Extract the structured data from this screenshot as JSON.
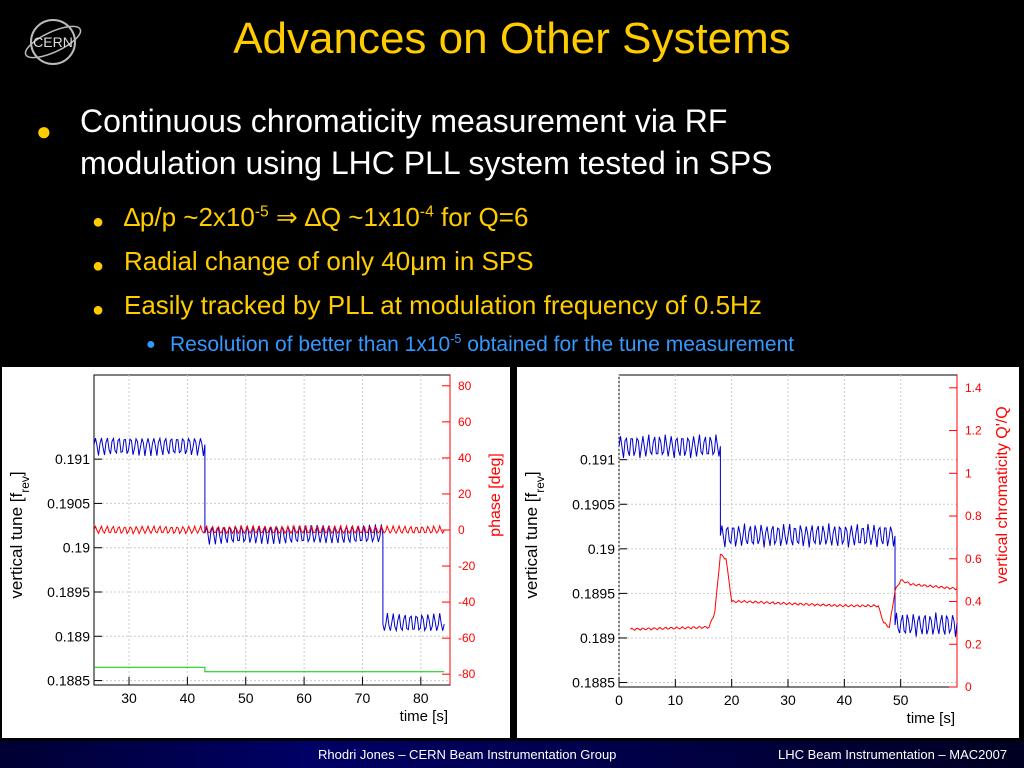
{
  "slide": {
    "title": "Advances on Other Systems",
    "logo_text": "CERN",
    "bullet1_line1": "Continuous chromaticity measurement via RF",
    "bullet1_line2": "modulation using LHC PLL system tested in SPS",
    "sub1_a": "∆p/p ~2x10",
    "sub1_sup1": "-5",
    "sub1_b": " ⇒ ∆Q ~1x10",
    "sub1_sup2": "-4",
    "sub1_c": " for Q=6",
    "sub2": "Radial change of only 40μm in SPS",
    "sub3": "Easily tracked by PLL at modulation frequency of 0.5Hz",
    "subsub_a": "Resolution of better than 1x10",
    "subsub_sup": "-5",
    "subsub_b": " obtained for the tune measurement",
    "footer_left": "Rhodri Jones – CERN Beam Instrumentation Group",
    "footer_right": "LHC Beam Instrumentation – MAC2007",
    "colors": {
      "title": "#ffcc00",
      "text": "#ffffff",
      "sub": "#ffcc00",
      "subsub": "#3399ff",
      "tune": "#0000cc",
      "phase": "#ff0000",
      "green": "#00cc00"
    }
  },
  "chart_data": [
    {
      "type": "line",
      "xlabel": "time [s]",
      "ylabel": "vertical tune [f_rev]",
      "ylabel_main": "vertical tune [f",
      "ylabel_sub": "rev",
      "ylabel_end": "]",
      "y2label": "phase [deg]",
      "xlim": [
        24,
        85
      ],
      "ylim": [
        0.18845,
        0.19195
      ],
      "y2lim": [
        -86,
        86
      ],
      "xticks": [
        30,
        40,
        50,
        60,
        70,
        80
      ],
      "yticks": [
        0.1885,
        0.189,
        0.1895,
        0.19,
        0.1905,
        0.191
      ],
      "ytick_labels": [
        "0.1885",
        "0.189",
        "0.1895",
        "0.19",
        "0.1905",
        "0.191"
      ],
      "y2ticks": [
        -80,
        -60,
        -40,
        -20,
        0,
        20,
        40,
        60,
        80
      ],
      "grid": true,
      "series": [
        {
          "axis": "y",
          "color": "#0000cc",
          "amplitude": 0.0001,
          "segments": [
            {
              "x": [
                24,
                43
              ],
              "y": [
                0.19115,
                0.19115
              ]
            },
            {
              "x": [
                43,
                73.5
              ],
              "y": [
                0.19015,
                0.19015
              ]
            },
            {
              "x": [
                73.5,
                84
              ],
              "y": [
                0.18915,
                0.18915
              ]
            }
          ]
        },
        {
          "axis": "y2",
          "color": "#ff0000",
          "amplitude": 2,
          "segments": [
            {
              "x": [
                24,
                84
              ],
              "y": [
                0,
                0
              ]
            }
          ]
        },
        {
          "axis": "y",
          "color": "#00cc00",
          "amplitude": 0,
          "segments": [
            {
              "x": [
                24,
                43
              ],
              "y": [
                0.18865,
                0.18865
              ]
            },
            {
              "x": [
                43,
                84
              ],
              "y": [
                0.1886,
                0.1886
              ]
            }
          ]
        }
      ]
    },
    {
      "type": "line",
      "xlabel": "time [s]",
      "ylabel": "vertical tune [f_rev]",
      "ylabel_main": "vertical tune [f",
      "ylabel_sub": "rev",
      "ylabel_end": "]",
      "y2label": "vertical chromaticity Q'/Q",
      "xlim": [
        0,
        60
      ],
      "ylim": [
        0.18845,
        0.19195
      ],
      "y2lim": [
        0,
        1.46
      ],
      "xticks": [
        0,
        10,
        20,
        30,
        40,
        50
      ],
      "yticks": [
        0.1885,
        0.189,
        0.1895,
        0.19,
        0.1905,
        0.191
      ],
      "ytick_labels": [
        "0.1885",
        "0.189",
        "0.1895",
        "0.19",
        "0.1905",
        "0.191"
      ],
      "y2ticks": [
        0,
        0.2,
        0.4,
        0.6,
        0.8,
        1,
        1.2,
        1.4
      ],
      "grid": true,
      "series": [
        {
          "axis": "y",
          "color": "#0000cc",
          "amplitude": 0.00012,
          "segments": [
            {
              "x": [
                0,
                18
              ],
              "y": [
                0.19115,
                0.19115
              ]
            },
            {
              "x": [
                18,
                49
              ],
              "y": [
                0.19015,
                0.19015
              ]
            },
            {
              "x": [
                49,
                60
              ],
              "y": [
                0.18915,
                0.18915
              ]
            }
          ]
        },
        {
          "axis": "y2",
          "color": "#ff0000",
          "amplitude": 0.005,
          "segments": [
            {
              "x": [
                2,
                16,
                17,
                18,
                19,
                20,
                22,
                30,
                40,
                46,
                47,
                48,
                49,
                50,
                52,
                60
              ],
              "y": [
                0.27,
                0.28,
                0.35,
                0.62,
                0.6,
                0.4,
                0.4,
                0.39,
                0.38,
                0.38,
                0.3,
                0.28,
                0.45,
                0.5,
                0.48,
                0.46
              ]
            }
          ]
        }
      ]
    }
  ]
}
